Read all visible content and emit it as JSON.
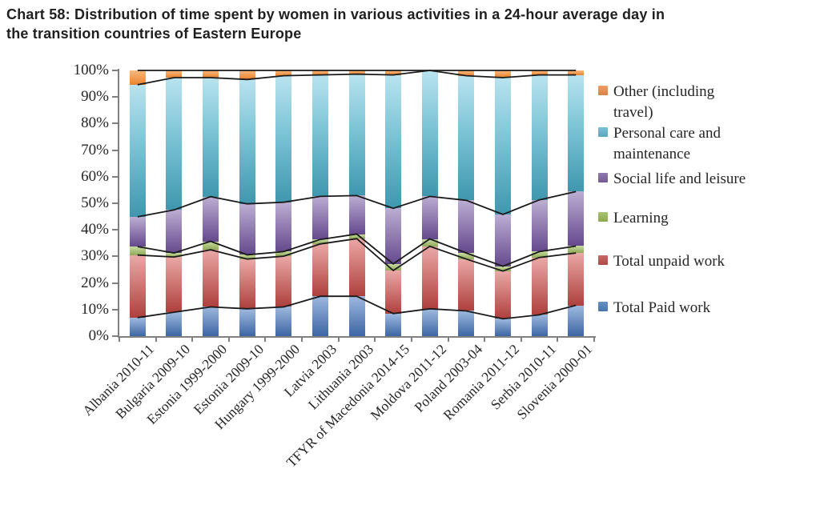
{
  "title_lines": [
    "Chart 58: Distribution of time spent by women in various activities in a 24-hour average day in",
    "the transition countries of Eastern Europe"
  ],
  "chart_data": {
    "type": "bar",
    "subtype": "100%-stacked-columns-with-black-cumulative-boundary-lines",
    "title": "Chart 58: Distribution of time spent by women in various activities in a 24-hour average day in the transition countries of Eastern Europe",
    "categories": [
      "Albania 2010-11",
      "Bulgaria 2009-10",
      "Estonia 1999-2000",
      "Estonia 2009-10",
      "Hungary 1999-2000",
      "Latvia 2003",
      "Lithuania 2003",
      "TFYR of Macedonia 2014-15",
      "Moldova 2011-12",
      "Poland 2003-04",
      "Romania 2011-12",
      "Serbia 2010-11",
      "Slovenia 2000-01"
    ],
    "series": [
      {
        "name": "Total Paid work",
        "color": "#4F81BD",
        "values": [
          7.0,
          9.0,
          11.0,
          10.3,
          11.0,
          15.0,
          15.0,
          8.5,
          10.3,
          9.5,
          6.5,
          8.0,
          11.6
        ]
      },
      {
        "name": "Total unpaid work",
        "color": "#C0504D",
        "values": [
          23.5,
          20.8,
          21.5,
          18.7,
          19.1,
          19.7,
          21.7,
          16.2,
          23.5,
          19.5,
          18.0,
          21.6,
          19.7
        ]
      },
      {
        "name": "Learning",
        "color": "#9BBB59",
        "values": [
          3.2,
          1.5,
          3.2,
          1.6,
          1.7,
          1.7,
          1.7,
          2.5,
          2.8,
          2.3,
          1.8,
          2.2,
          2.6
        ]
      },
      {
        "name": "Social life and leisure",
        "color": "#8064A2",
        "values": [
          11.2,
          16.2,
          16.8,
          19.2,
          18.6,
          16.2,
          14.5,
          20.9,
          16.0,
          19.8,
          19.5,
          19.5,
          20.5
        ]
      },
      {
        "name": "Personal care and maintenance",
        "color": "#4BACC6",
        "values": [
          49.7,
          49.8,
          44.8,
          46.8,
          47.6,
          45.7,
          45.7,
          50.2,
          47.4,
          46.9,
          51.5,
          47.0,
          43.9
        ]
      },
      {
        "name": "Other (including travel)",
        "color": "#F79646",
        "values": [
          5.4,
          2.7,
          2.7,
          3.4,
          2.0,
          1.7,
          1.4,
          1.7,
          0.0,
          2.0,
          2.7,
          1.7,
          1.7
        ]
      }
    ],
    "y_tick_labels": [
      "100%",
      "90%",
      "80%",
      "70%",
      "60%",
      "50%",
      "40%",
      "30%",
      "20%",
      "10%",
      "0%"
    ],
    "ylim": [
      0,
      100
    ],
    "gridlines": false,
    "legend_position": "right",
    "overlay_line_color": "#1a1a1a"
  },
  "legend": {
    "items": [
      {
        "label": "Other (including travel)",
        "label_lines": "Other (including\ntravel)",
        "color": "#F08E4E"
      },
      {
        "label": "Personal care and maintenance",
        "label_lines": "Personal care and\nmaintenance",
        "color": "#62B8CF"
      },
      {
        "label": "Social life and leisure",
        "label_lines": "Social life and leisure",
        "color": "#8064A2"
      },
      {
        "label": "Learning",
        "label_lines": "Learning",
        "color": "#9BBB59"
      },
      {
        "label": "Total unpaid work",
        "label_lines": "Total unpaid work",
        "color": "#C0504D"
      },
      {
        "label": "Total Paid work",
        "label_lines": "Total Paid work",
        "color": "#4F81BD"
      }
    ]
  }
}
